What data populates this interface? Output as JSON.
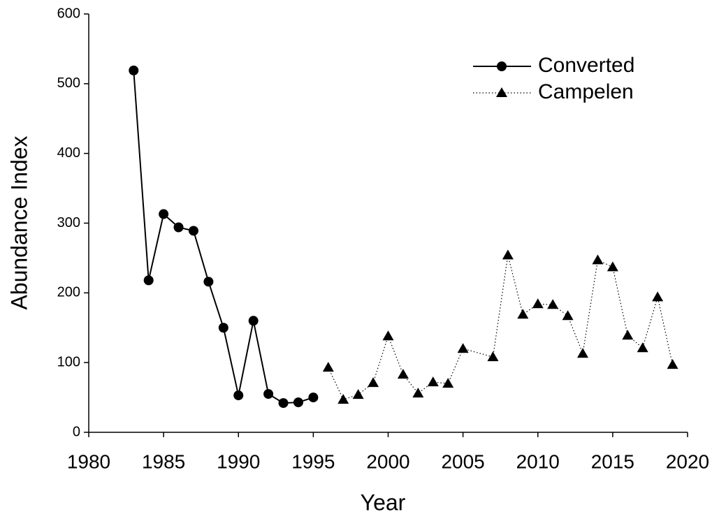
{
  "chart_data": {
    "type": "line",
    "x_label": "Year",
    "y_label": "Abundance Index",
    "xlim": [
      1980,
      2020
    ],
    "xticks": [
      1980,
      1985,
      1990,
      1995,
      2000,
      2005,
      2010,
      2015,
      2020
    ],
    "ylim": [
      0,
      600
    ],
    "yticks": [
      0,
      100,
      200,
      300,
      400,
      500,
      600
    ],
    "legend": "upper right",
    "series": [
      {
        "name": "Converted",
        "color": "#000000",
        "marker": "circle",
        "line": "solid",
        "x": [
          1983,
          1984,
          1985,
          1986,
          1987,
          1988,
          1989,
          1990,
          1991,
          1992,
          1993,
          1994,
          1995
        ],
        "values": [
          519,
          218,
          313,
          294,
          289,
          216,
          150,
          53,
          160,
          55,
          42,
          43,
          50
        ]
      },
      {
        "name": "Campelen",
        "color": "#000000",
        "marker": "triangle",
        "line": "dotted",
        "x": [
          1996,
          1997,
          1998,
          1999,
          2000,
          2001,
          2002,
          2003,
          2004,
          2005,
          2007,
          2008,
          2009,
          2010,
          2011,
          2012,
          2013,
          2014,
          2015,
          2016,
          2017,
          2018,
          2019
        ],
        "values": [
          93,
          47,
          54,
          71,
          138,
          83,
          56,
          72,
          70,
          120,
          108,
          254,
          169,
          184,
          183,
          167,
          113,
          247,
          237,
          139,
          121,
          194,
          97
        ]
      }
    ]
  }
}
